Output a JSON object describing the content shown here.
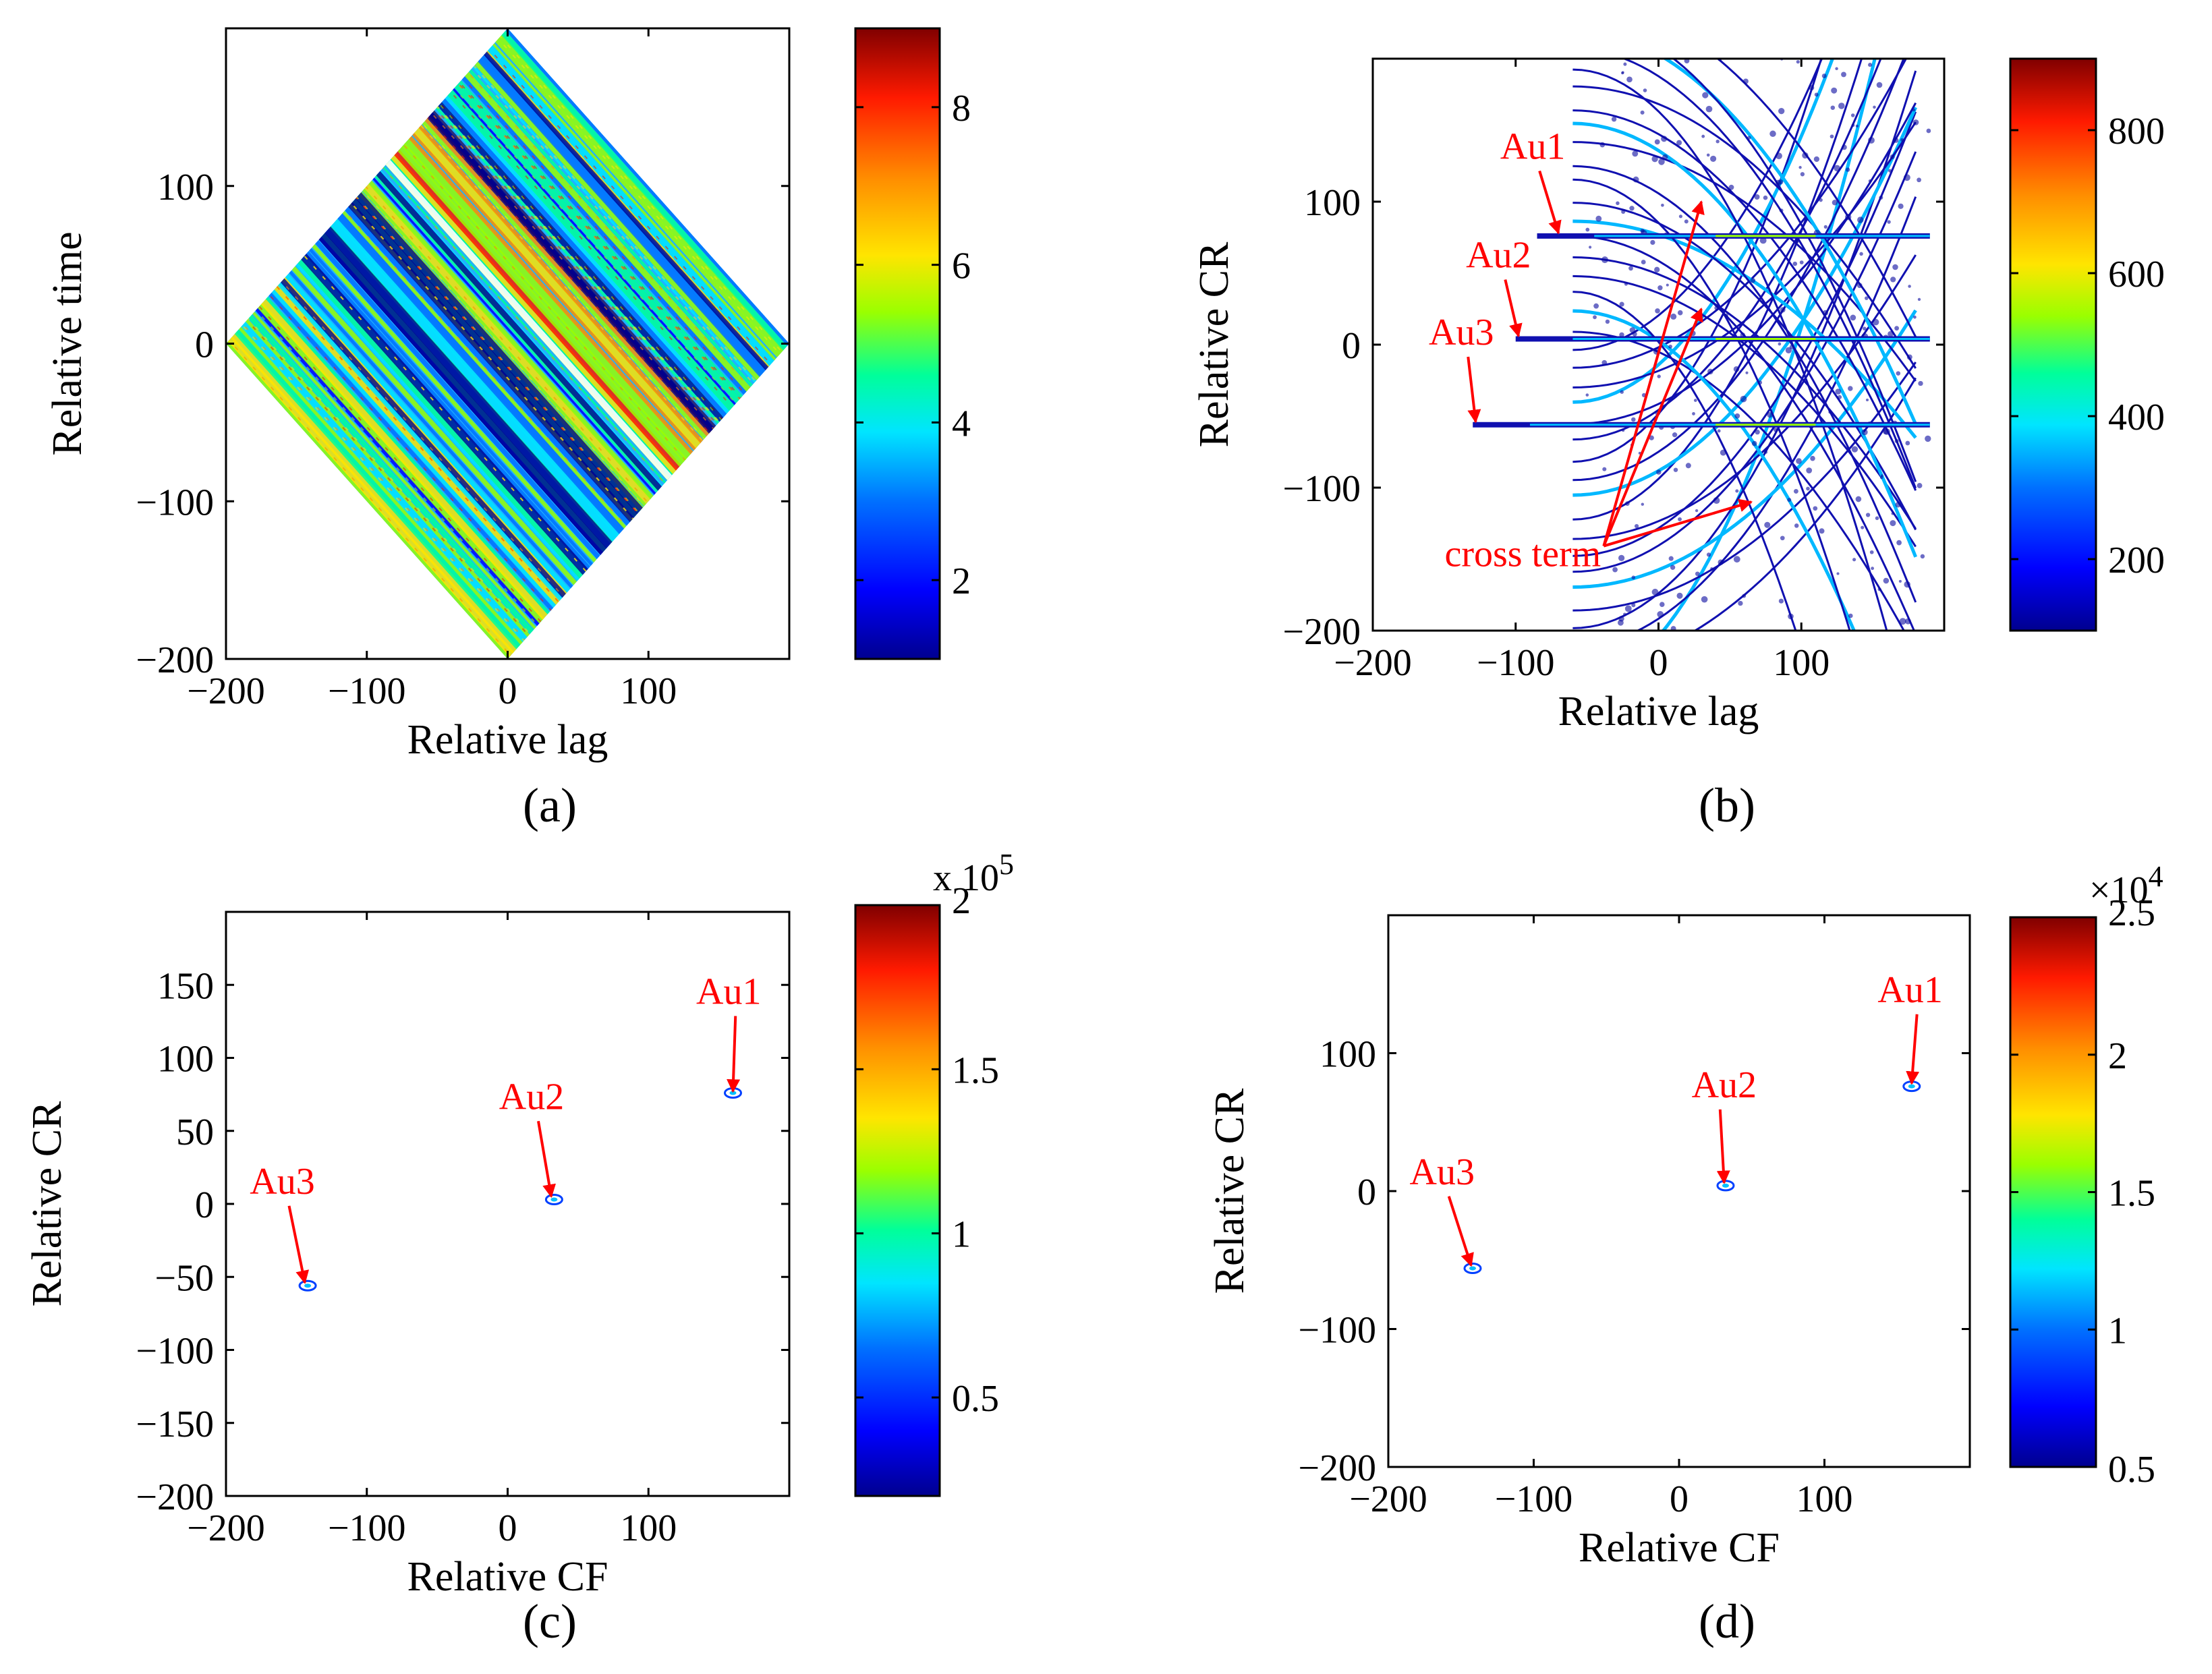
{
  "figure": {
    "description_free": true,
    "panels": [
      {
        "id": "a",
        "caption": "(a)"
      },
      {
        "id": "b",
        "caption": "(b)"
      },
      {
        "id": "c",
        "caption": "(c)"
      },
      {
        "id": "d",
        "caption": "(d)"
      }
    ]
  },
  "colormap": [
    "#00008f",
    "#0000ff",
    "#0070ff",
    "#00e5ff",
    "#00ff9a",
    "#9aff00",
    "#ffe500",
    "#ff8f00",
    "#ff1a00",
    "#800000"
  ],
  "chart_data": [
    {
      "id": "a",
      "type": "heatmap",
      "caption": "(a)",
      "xlabel": "Relative lag",
      "ylabel": "Relative time",
      "xlim": [
        -200,
        200
      ],
      "ylim": [
        -200,
        200
      ],
      "xticks": [
        -200,
        -100,
        0,
        100
      ],
      "yticks": [
        -200,
        -100,
        0,
        100
      ],
      "colorbar": {
        "range": [
          1,
          9
        ],
        "ticks": [
          2,
          4,
          6,
          8
        ],
        "multiplier": ""
      },
      "support": "diamond |lag| + |time| <= 200",
      "annotations": []
    },
    {
      "id": "b",
      "type": "heatmap",
      "caption": "(b)",
      "xlabel": "Relative lag",
      "ylabel": "Relative CR",
      "xlim": [
        -200,
        200
      ],
      "ylim": [
        -200,
        200
      ],
      "xticks": [
        -200,
        -100,
        0,
        100
      ],
      "yticks": [
        -200,
        -100,
        0,
        100
      ],
      "colorbar": {
        "range": [
          100,
          900
        ],
        "ticks": [
          200,
          400,
          600,
          800
        ],
        "multiplier": ""
      },
      "features": [
        {
          "label": "Au1",
          "cr": 76,
          "lag_start": -85
        },
        {
          "label": "Au2",
          "cr": 4,
          "lag_start": -100
        },
        {
          "label": "Au3",
          "cr": -56,
          "lag_start": -130
        }
      ],
      "annotations": [
        {
          "text": "Au1",
          "text_at": [
            -88,
            130
          ],
          "target": [
            -70,
            78
          ]
        },
        {
          "text": "Au2",
          "text_at": [
            -112,
            54
          ],
          "target": [
            -98,
            6
          ]
        },
        {
          "text": "Au3",
          "text_at": [
            -138,
            0
          ],
          "target": [
            -128,
            -54
          ]
        },
        {
          "text": "cross term",
          "text_at": [
            -95,
            -155
          ],
          "targets": [
            [
              30,
              100
            ],
            [
              30,
              25
            ],
            [
              65,
              -110
            ]
          ]
        }
      ]
    },
    {
      "id": "c",
      "type": "scatter",
      "caption": "(c)",
      "xlabel": "Relative CF",
      "ylabel": "Relative CR",
      "xlim": [
        -200,
        200
      ],
      "ylim": [
        -200,
        200
      ],
      "xticks": [
        -200,
        -100,
        0,
        100
      ],
      "yticks": [
        -200,
        -150,
        -100,
        -50,
        0,
        50,
        100,
        150
      ],
      "colorbar": {
        "range": [
          0.2,
          2.0
        ],
        "ticks": [
          0.5,
          1,
          1.5,
          2
        ],
        "multiplier": "x 10^5"
      },
      "points": [
        {
          "label": "Au1",
          "x": 160,
          "y": 76
        },
        {
          "label": "Au2",
          "x": 33,
          "y": 3
        },
        {
          "label": "Au3",
          "x": -142,
          "y": -56
        }
      ],
      "annotations": [
        {
          "text": "Au1",
          "text_at": [
            157,
            137
          ],
          "target": [
            160,
            77
          ]
        },
        {
          "text": "Au2",
          "text_at": [
            17,
            65
          ],
          "target": [
            31,
            5
          ]
        },
        {
          "text": "Au3",
          "text_at": [
            -160,
            7
          ],
          "target": [
            -144,
            -54
          ]
        }
      ]
    },
    {
      "id": "d",
      "type": "scatter",
      "caption": "(d)",
      "xlabel": "Relative CF",
      "ylabel": "Relative CR",
      "xlim": [
        -200,
        200
      ],
      "ylim": [
        -200,
        200
      ],
      "xticks": [
        -200,
        -100,
        0,
        100
      ],
      "yticks": [
        -200,
        -100,
        0,
        100
      ],
      "colorbar": {
        "range": [
          0.5,
          2.5
        ],
        "ticks": [
          0.5,
          1,
          1.5,
          2,
          2.5
        ],
        "multiplier": "×10^4"
      },
      "points": [
        {
          "label": "Au1",
          "x": 160,
          "y": 76
        },
        {
          "label": "Au2",
          "x": 32,
          "y": 4
        },
        {
          "label": "Au3",
          "x": -142,
          "y": -56
        }
      ],
      "annotations": [
        {
          "text": "Au1",
          "text_at": [
            159,
            137
          ],
          "target": [
            160,
            78
          ]
        },
        {
          "text": "Au2",
          "text_at": [
            31,
            68
          ],
          "target": [
            31,
            6
          ]
        },
        {
          "text": "Au3",
          "text_at": [
            -163,
            5
          ],
          "target": [
            -143,
            -54
          ]
        }
      ]
    }
  ]
}
